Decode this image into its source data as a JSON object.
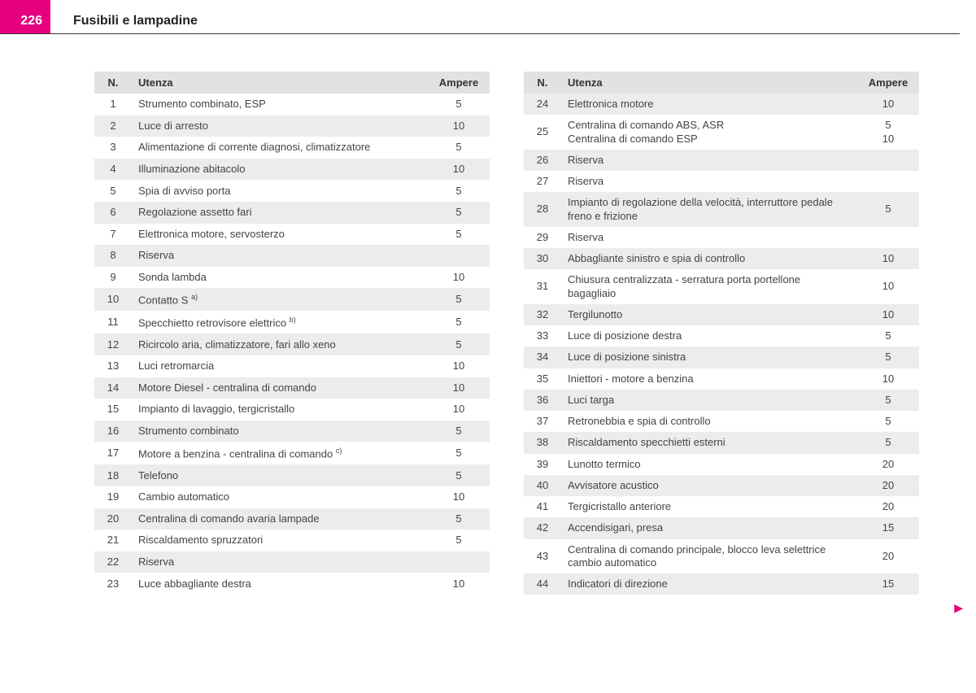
{
  "header": {
    "page_number": "226",
    "title": "Fusibili e lampadine"
  },
  "columns": {
    "n": "N.",
    "utenza": "Utenza",
    "ampere": "Ampere"
  },
  "colors": {
    "accent": "#e6007e",
    "header_bg": "#e2e2e2",
    "row_shade": "#ececec",
    "text": "#444444"
  },
  "table_left": [
    {
      "n": "1",
      "utenza": "Strumento combinato, ESP",
      "amp": "5"
    },
    {
      "n": "2",
      "utenza": "Luce di arresto",
      "amp": "10"
    },
    {
      "n": "3",
      "utenza": "Alimentazione di corrente diagnosi, climatizzatore",
      "amp": "5"
    },
    {
      "n": "4",
      "utenza": "Illuminazione abitacolo",
      "amp": "10"
    },
    {
      "n": "5",
      "utenza": "Spia di avviso porta",
      "amp": "5"
    },
    {
      "n": "6",
      "utenza": "Regolazione assetto fari",
      "amp": "5"
    },
    {
      "n": "7",
      "utenza": "Elettronica motore, servosterzo",
      "amp": "5"
    },
    {
      "n": "8",
      "utenza": "Riserva",
      "amp": ""
    },
    {
      "n": "9",
      "utenza": "Sonda lambda",
      "amp": "10"
    },
    {
      "n": "10",
      "utenza": "Contatto S",
      "sup": "a)",
      "amp": "5"
    },
    {
      "n": "11",
      "utenza": "Specchietto retrovisore elettrico",
      "sup": "b)",
      "amp": "5"
    },
    {
      "n": "12",
      "utenza": "Ricircolo aria, climatizzatore, fari allo xeno",
      "amp": "5"
    },
    {
      "n": "13",
      "utenza": "Luci retromarcia",
      "amp": "10"
    },
    {
      "n": "14",
      "utenza": "Motore Diesel - centralina di comando",
      "amp": "10"
    },
    {
      "n": "15",
      "utenza": "Impianto di lavaggio, tergicristallo",
      "amp": "10"
    },
    {
      "n": "16",
      "utenza": "Strumento combinato",
      "amp": "5"
    },
    {
      "n": "17",
      "utenza": "Motore a benzina - centralina di comando",
      "sup": "c)",
      "amp": "5"
    },
    {
      "n": "18",
      "utenza": "Telefono",
      "amp": "5"
    },
    {
      "n": "19",
      "utenza": "Cambio automatico",
      "amp": "10"
    },
    {
      "n": "20",
      "utenza": "Centralina di comando avaria lampade",
      "amp": "5"
    },
    {
      "n": "21",
      "utenza": "Riscaldamento spruzzatori",
      "amp": "5"
    },
    {
      "n": "22",
      "utenza": "Riserva",
      "amp": ""
    },
    {
      "n": "23",
      "utenza": "Luce abbagliante destra",
      "amp": "10"
    }
  ],
  "table_right": [
    {
      "n": "24",
      "utenza": "Elettronica motore",
      "amp": "10"
    },
    {
      "n": "25",
      "utenza": "Centralina di comando ABS, ASR\nCentralina di comando ESP",
      "amp": "5\n10"
    },
    {
      "n": "26",
      "utenza": "Riserva",
      "amp": ""
    },
    {
      "n": "27",
      "utenza": "Riserva",
      "amp": ""
    },
    {
      "n": "28",
      "utenza": "Impianto di regolazione della velocità, interruttore pedale freno e frizione",
      "amp": "5"
    },
    {
      "n": "29",
      "utenza": "Riserva",
      "amp": ""
    },
    {
      "n": "30",
      "utenza": "Abbagliante sinistro e spia di controllo",
      "amp": "10"
    },
    {
      "n": "31",
      "utenza": "Chiusura centralizzata - serratura porta portellone bagagliaio",
      "amp": "10"
    },
    {
      "n": "32",
      "utenza": "Tergilunotto",
      "amp": "10"
    },
    {
      "n": "33",
      "utenza": "Luce di posizione destra",
      "amp": "5"
    },
    {
      "n": "34",
      "utenza": "Luce di posizione sinistra",
      "amp": "5"
    },
    {
      "n": "35",
      "utenza": "Iniettori - motore a benzina",
      "amp": "10"
    },
    {
      "n": "36",
      "utenza": "Luci targa",
      "amp": "5"
    },
    {
      "n": "37",
      "utenza": "Retronebbia e spia di controllo",
      "amp": "5"
    },
    {
      "n": "38",
      "utenza": "Riscaldamento specchietti esterni",
      "amp": "5"
    },
    {
      "n": "39",
      "utenza": "Lunotto termico",
      "amp": "20"
    },
    {
      "n": "40",
      "utenza": "Avvisatore acustico",
      "amp": "20"
    },
    {
      "n": "41",
      "utenza": "Tergicristallo anteriore",
      "amp": "20"
    },
    {
      "n": "42",
      "utenza": "Accendisigari, presa",
      "amp": "15"
    },
    {
      "n": "43",
      "utenza": "Centralina di comando principale, blocco leva selettrice cambio automatico",
      "amp": "20"
    },
    {
      "n": "44",
      "utenza": "Indicatori di direzione",
      "amp": "15"
    }
  ],
  "continue_glyph": "▶"
}
